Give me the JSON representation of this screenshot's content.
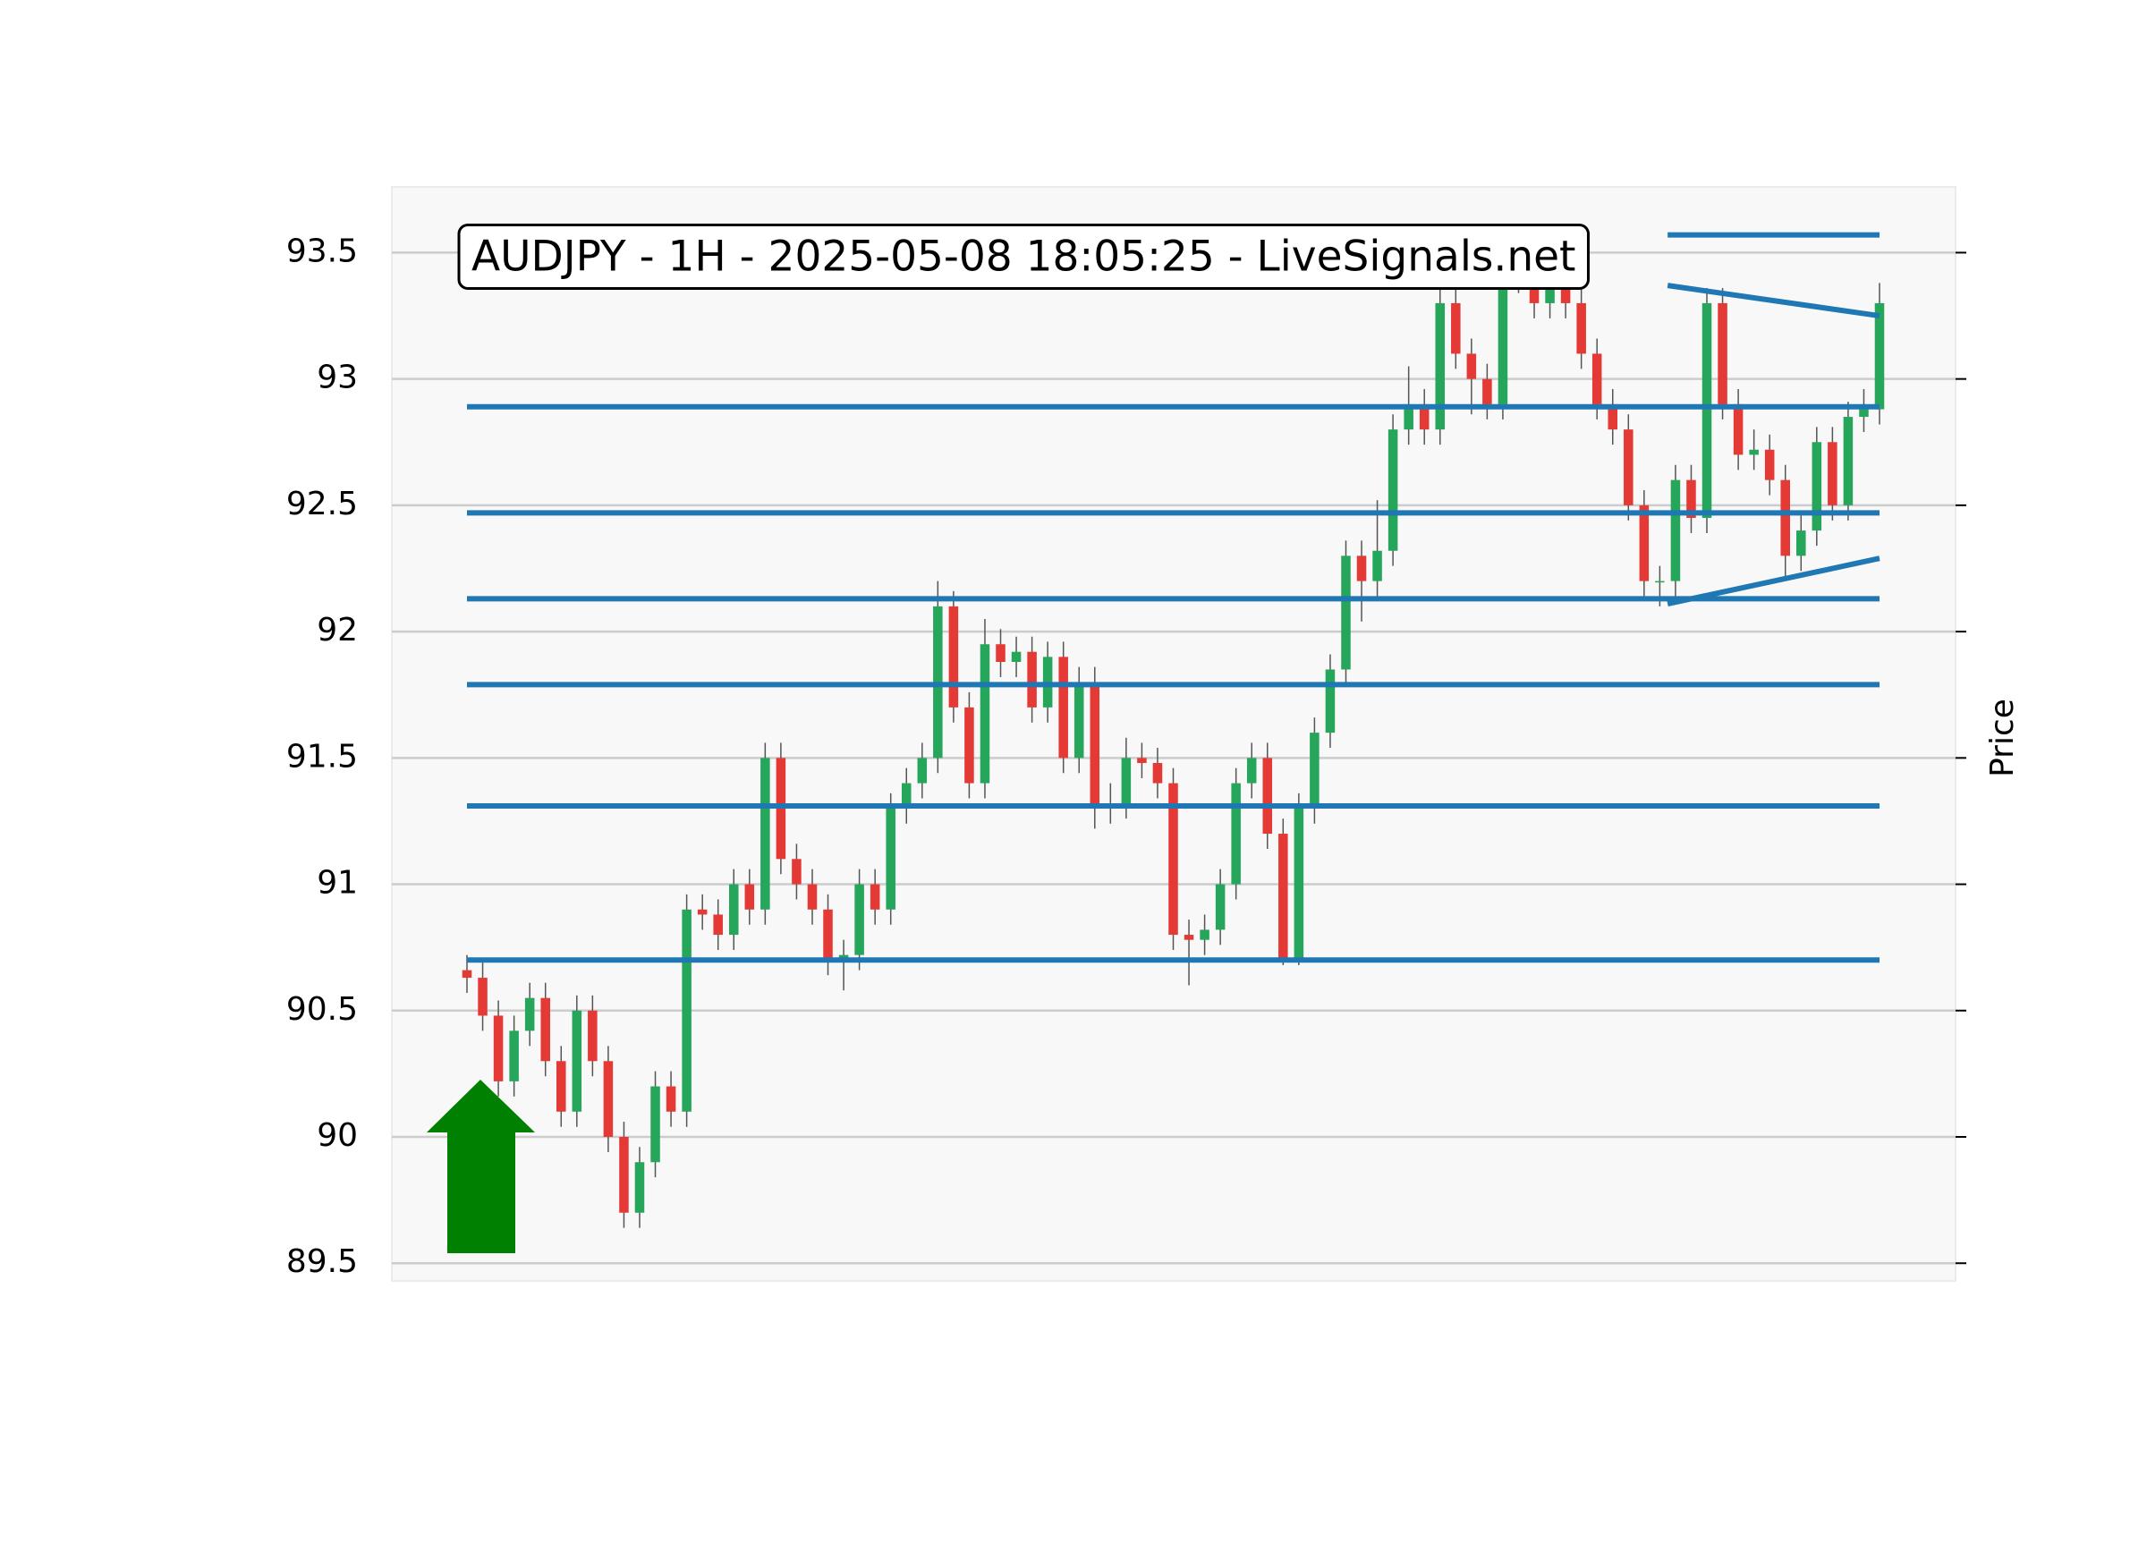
{
  "chart_data": {
    "type": "candlestick",
    "title": "AUDJPY - 1H - 2025-05-08 18:05:25 - LiveSignals.net",
    "y_label": "Price",
    "ylim": [
      89.43,
      93.76
    ],
    "yticks": [
      89.5,
      90.0,
      90.5,
      91.0,
      91.5,
      92.0,
      92.5,
      93.0,
      93.5
    ],
    "grid": true,
    "up_color": "#26a65b",
    "down_color": "#e53935",
    "line_color": "#1f77b4",
    "open": [
      90.66,
      90.63,
      90.48,
      90.22,
      90.42,
      90.55,
      90.3,
      90.1,
      90.5,
      90.3,
      90.0,
      89.7,
      89.9,
      90.2,
      90.1,
      90.9,
      90.88,
      90.8,
      91.0,
      90.9,
      91.5,
      91.1,
      91.0,
      90.9,
      90.7,
      90.72,
      91.0,
      90.9,
      91.3,
      91.4,
      91.5,
      92.1,
      91.7,
      91.4,
      91.95,
      91.88,
      91.92,
      91.7,
      91.9,
      91.5,
      91.8,
      91.3,
      91.32,
      91.5,
      91.48,
      91.4,
      90.8,
      90.78,
      90.82,
      91.0,
      91.4,
      91.5,
      91.2,
      90.7,
      91.3,
      91.6,
      91.85,
      92.3,
      92.2,
      92.32,
      92.8,
      92.9,
      92.8,
      93.3,
      93.1,
      93.0,
      92.9,
      93.4,
      93.45,
      93.3,
      93.4,
      93.3,
      93.1,
      92.9,
      92.8,
      92.5,
      92.2,
      92.2,
      92.6,
      92.45,
      93.3,
      92.9,
      92.7,
      92.72,
      92.6,
      92.3,
      92.4,
      92.75,
      92.5,
      92.85,
      92.88
    ],
    "high": [
      90.72,
      90.69,
      90.54,
      90.48,
      90.61,
      90.61,
      90.36,
      90.56,
      90.56,
      90.36,
      90.06,
      89.96,
      90.26,
      90.26,
      90.96,
      90.96,
      90.94,
      91.06,
      91.06,
      91.56,
      91.56,
      91.16,
      91.06,
      90.96,
      90.78,
      91.06,
      91.06,
      91.36,
      91.46,
      91.56,
      92.2,
      92.16,
      91.76,
      92.05,
      92.01,
      91.98,
      91.98,
      91.96,
      91.96,
      91.86,
      91.86,
      91.4,
      91.58,
      91.56,
      91.54,
      91.46,
      90.86,
      90.88,
      91.06,
      91.46,
      91.56,
      91.56,
      91.26,
      91.36,
      91.66,
      91.91,
      92.36,
      92.36,
      92.52,
      92.86,
      93.05,
      92.96,
      93.4,
      93.36,
      93.16,
      93.06,
      93.46,
      93.51,
      93.51,
      93.46,
      93.46,
      93.36,
      93.16,
      92.96,
      92.86,
      92.56,
      92.26,
      92.66,
      92.66,
      93.36,
      93.36,
      92.96,
      92.8,
      92.78,
      92.66,
      92.46,
      92.81,
      92.81,
      92.91,
      92.96,
      93.38
    ],
    "low": [
      90.57,
      90.42,
      90.16,
      90.16,
      90.36,
      90.24,
      90.04,
      90.04,
      90.24,
      89.94,
      89.64,
      89.64,
      89.84,
      90.04,
      90.04,
      90.82,
      90.74,
      90.74,
      90.84,
      90.84,
      91.04,
      90.94,
      90.84,
      90.64,
      90.58,
      90.66,
      90.84,
      90.84,
      91.24,
      91.34,
      91.44,
      91.64,
      91.34,
      91.34,
      91.82,
      91.82,
      91.64,
      91.64,
      91.44,
      91.44,
      91.22,
      91.24,
      91.26,
      91.42,
      91.34,
      90.74,
      90.6,
      90.72,
      90.76,
      90.94,
      91.34,
      91.14,
      90.68,
      90.68,
      91.24,
      91.54,
      91.79,
      92.04,
      92.14,
      92.26,
      92.74,
      92.74,
      92.74,
      93.04,
      92.86,
      92.84,
      92.84,
      93.34,
      93.24,
      93.24,
      93.24,
      93.04,
      92.84,
      92.74,
      92.44,
      92.14,
      92.1,
      92.14,
      92.39,
      92.39,
      92.84,
      92.64,
      92.64,
      92.54,
      92.22,
      92.24,
      92.34,
      92.44,
      92.44,
      92.79,
      92.82
    ],
    "close": [
      90.63,
      90.48,
      90.22,
      90.42,
      90.55,
      90.3,
      90.1,
      90.5,
      90.3,
      90.0,
      89.7,
      89.9,
      90.2,
      90.1,
      90.9,
      90.88,
      90.8,
      91.0,
      90.9,
      91.5,
      91.1,
      91.0,
      90.9,
      90.7,
      90.72,
      91.0,
      90.9,
      91.3,
      91.4,
      91.5,
      92.1,
      91.7,
      91.4,
      91.95,
      91.88,
      91.92,
      91.7,
      91.9,
      91.5,
      91.8,
      91.3,
      91.32,
      91.5,
      91.48,
      91.4,
      90.8,
      90.78,
      90.82,
      91.0,
      91.4,
      91.5,
      91.2,
      90.7,
      91.3,
      91.6,
      91.85,
      92.3,
      92.2,
      92.32,
      92.8,
      92.9,
      92.8,
      93.3,
      93.1,
      93.0,
      92.9,
      93.4,
      93.45,
      93.3,
      93.4,
      93.3,
      93.1,
      92.9,
      92.8,
      92.5,
      92.2,
      92.2,
      92.6,
      92.45,
      93.3,
      92.9,
      92.7,
      92.72,
      92.6,
      92.3,
      92.4,
      92.75,
      92.5,
      92.85,
      92.88,
      93.3
    ],
    "hlines": [
      90.7,
      91.31,
      91.79,
      92.13,
      92.47,
      92.89
    ],
    "segments": [
      {
        "x": [
          76.5,
          90
        ],
        "y": [
          93.57,
          93.57
        ]
      },
      {
        "x": [
          76.5,
          90
        ],
        "y": [
          93.37,
          93.25
        ]
      },
      {
        "x": [
          76.5,
          90
        ],
        "y": [
          92.11,
          92.29
        ]
      }
    ]
  }
}
